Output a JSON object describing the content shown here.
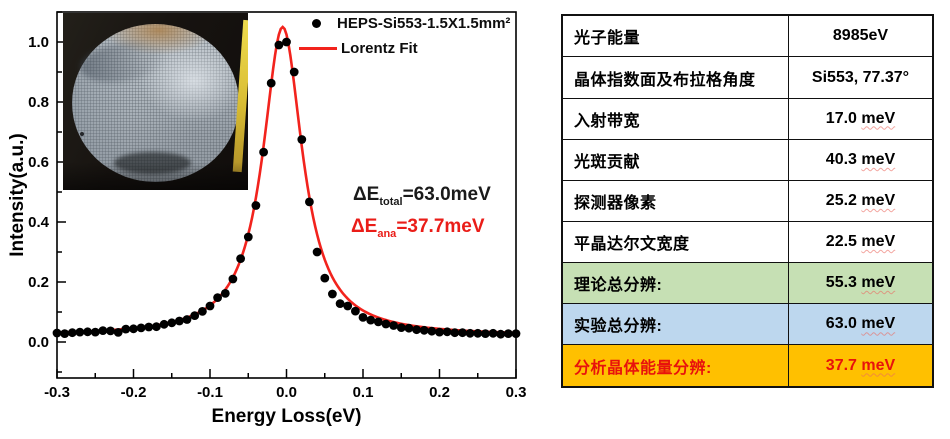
{
  "chart": {
    "legend": [
      {
        "label": "HEPS-Si553-1.5X1.5mm²",
        "marker": "dot-icon",
        "color": "#000000"
      },
      {
        "label": "Lorentz Fit",
        "marker": "line-icon",
        "color": "#f2231d"
      }
    ],
    "annotations": [
      {
        "prefix": "ΔE",
        "sub": "total",
        "rest": "=63.0meV",
        "color": "#1a1a1a"
      },
      {
        "prefix": "ΔE",
        "sub": "ana",
        "rest": "=37.7meV",
        "color": "#ea1d18"
      }
    ]
  },
  "chart_data": {
    "type": "scatter",
    "title": "",
    "xlabel": "Energy Loss(eV)",
    "ylabel": "Intensity(a.u.)",
    "xlim": [
      -0.3,
      0.3
    ],
    "ylim": [
      -0.12,
      1.1
    ],
    "x_tick_labels": [
      "-0.3",
      "-0.2",
      "-0.1",
      "0.0",
      "0.1",
      "0.2",
      "0.3"
    ],
    "y_tick_labels": [
      "0.0",
      "0.2",
      "0.4",
      "0.6",
      "0.8",
      "1.0"
    ],
    "x_major_tick_step": 0.1,
    "x_minor_tick_step": 0.05,
    "y_major_tick_step": 0.2,
    "y_minor_tick_step": 0.1,
    "grid": false,
    "legend_position": "top-right-inside",
    "frame_color": "#000000",
    "series": [
      {
        "name": "HEPS-Si553-1.5X1.5mm²",
        "type": "scatter",
        "color": "#000000",
        "x": [
          -0.3,
          -0.29,
          -0.28,
          -0.27,
          -0.26,
          -0.25,
          -0.24,
          -0.23,
          -0.22,
          -0.21,
          -0.2,
          -0.19,
          -0.18,
          -0.17,
          -0.16,
          -0.15,
          -0.14,
          -0.13,
          -0.12,
          -0.11,
          -0.1,
          -0.09,
          -0.08,
          -0.07,
          -0.06,
          -0.05,
          -0.04,
          -0.03,
          -0.02,
          -0.01,
          0.0,
          0.01,
          0.02,
          0.03,
          0.04,
          0.05,
          0.06,
          0.07,
          0.08,
          0.09,
          0.1,
          0.11,
          0.12,
          0.13,
          0.14,
          0.15,
          0.16,
          0.17,
          0.18,
          0.19,
          0.2,
          0.21,
          0.22,
          0.23,
          0.24,
          0.25,
          0.26,
          0.27,
          0.28,
          0.29,
          0.3
        ],
        "y": [
          0.03,
          0.028,
          0.031,
          0.033,
          0.034,
          0.033,
          0.038,
          0.037,
          0.032,
          0.043,
          0.044,
          0.047,
          0.05,
          0.051,
          0.059,
          0.064,
          0.07,
          0.075,
          0.088,
          0.102,
          0.12,
          0.148,
          0.162,
          0.21,
          0.278,
          0.35,
          0.455,
          0.633,
          0.863,
          0.99,
          1.0,
          0.9,
          0.675,
          0.467,
          0.3,
          0.213,
          0.16,
          0.128,
          0.12,
          0.103,
          0.082,
          0.073,
          0.067,
          0.06,
          0.055,
          0.048,
          0.046,
          0.041,
          0.039,
          0.036,
          0.033,
          0.034,
          0.031,
          0.031,
          0.029,
          0.029,
          0.028,
          0.029,
          0.026,
          0.028,
          0.028
        ]
      },
      {
        "name": "Lorentz Fit",
        "type": "line",
        "color": "#f2231d",
        "fit": {
          "model": "lorentzian",
          "center": -0.005,
          "fwhm_eV": 0.063,
          "amplitude": 1.03,
          "baseline": 0.02
        }
      }
    ]
  },
  "table": {
    "rows": [
      {
        "label": "光子能量",
        "value": "8985eV",
        "unit": "",
        "bg": "#ffffff",
        "color": "#000000"
      },
      {
        "label": "晶体指数面及布拉格角度",
        "value": "Si553, 77.37°",
        "unit": "",
        "bg": "#ffffff",
        "color": "#000000"
      },
      {
        "label": "入射带宽",
        "value": "17.0",
        "unit": "meV",
        "bg": "#ffffff",
        "color": "#000000"
      },
      {
        "label": "光斑贡献",
        "value": "40.3",
        "unit": "meV",
        "bg": "#ffffff",
        "color": "#000000"
      },
      {
        "label": "探测器像素",
        "value": "25.2",
        "unit": "meV",
        "bg": "#ffffff",
        "color": "#000000"
      },
      {
        "label": "平晶达尔文宽度",
        "value": "22.5",
        "unit": "meV",
        "bg": "#ffffff",
        "color": "#000000"
      },
      {
        "label": "理论总分辨:",
        "value": "55.3",
        "unit": "meV",
        "bg": "#c6e0b4",
        "color": "#000000"
      },
      {
        "label": "实验总分辨:",
        "value": "63.0",
        "unit": "meV",
        "bg": "#bdd7ee",
        "color": "#000000"
      },
      {
        "label": "分析晶体能量分辨:",
        "value": "37.7",
        "unit": "meV",
        "bg": "#ffc000",
        "color": "#e8120c"
      }
    ]
  }
}
